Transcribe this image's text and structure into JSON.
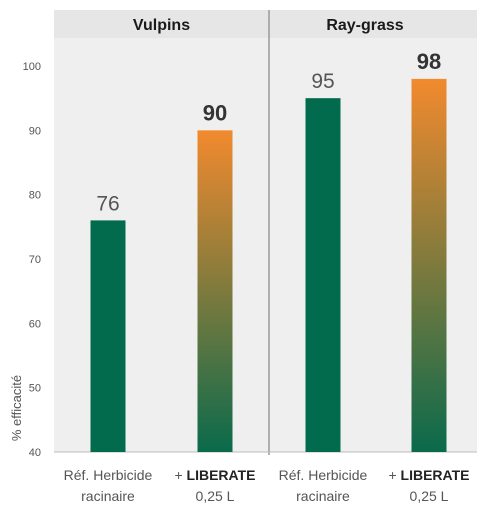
{
  "chart_data": {
    "type": "bar",
    "ylabel": "% efficacité",
    "ylim": [
      40,
      100
    ],
    "yticks": [
      40,
      50,
      60,
      70,
      80,
      90,
      100
    ],
    "groups": [
      {
        "title": "Vulpins",
        "bars": [
          {
            "label_line1": "Réf. Herbicide",
            "label_line2": "racinaire",
            "value": 76,
            "style": "reference",
            "value_label": "76"
          },
          {
            "label_prefix": "+ ",
            "label_bold": "LIBERATE",
            "label_line2": "0,25 L",
            "value": 90,
            "style": "liberate",
            "value_label": "90"
          }
        ]
      },
      {
        "title": "Ray-grass",
        "bars": [
          {
            "label_line1": "Réf. Herbicide",
            "label_line2": "racinaire",
            "value": 95,
            "style": "reference",
            "value_label": "95"
          },
          {
            "label_prefix": "+ ",
            "label_bold": "LIBERATE",
            "label_line2": "0,25 L",
            "value": 98,
            "style": "liberate",
            "value_label": "98"
          }
        ]
      }
    ],
    "colors": {
      "reference": "#036b4d",
      "liberate_top": "#f28a2e",
      "liberate_bottom": "#0a6a4c",
      "panel_bg": "#efefef",
      "header_bg": "#e6e6e6",
      "divider": "#9a9a9a"
    }
  }
}
